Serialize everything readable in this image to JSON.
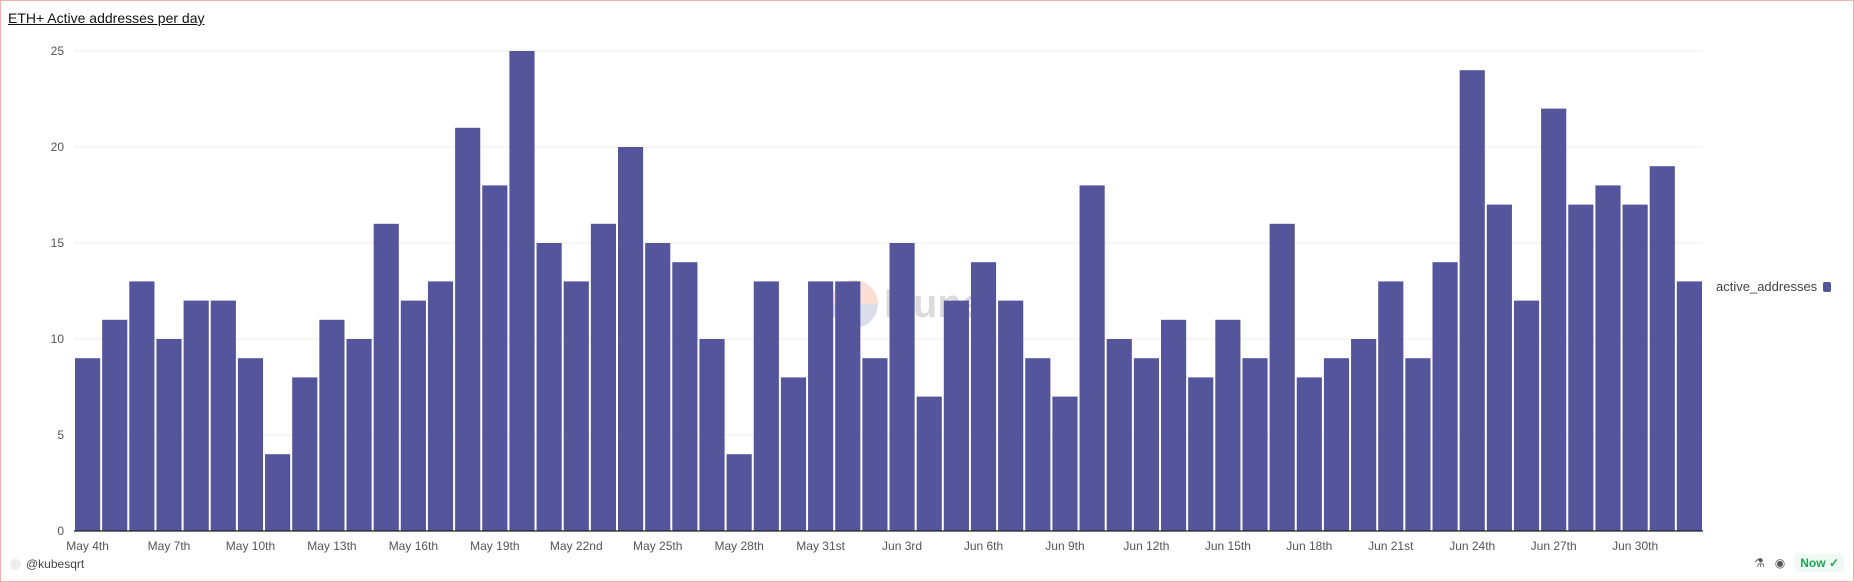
{
  "title": "ETH+ Active addresses per day",
  "footer": {
    "user": "@kubesqrt",
    "status": "Now"
  },
  "watermark": "Dune",
  "chart_data": {
    "type": "bar",
    "title": "ETH+ Active addresses per day",
    "xlabel": "",
    "ylabel": "",
    "ylim": [
      0,
      25
    ],
    "yticks": [
      0,
      5,
      10,
      15,
      20,
      25
    ],
    "grid": true,
    "legend": {
      "entries": [
        "active_addresses"
      ],
      "placement": "right"
    },
    "color": "#55559b",
    "xtick_labels": [
      "May 4th",
      "May 7th",
      "May 10th",
      "May 13th",
      "May 16th",
      "May 19th",
      "May 22nd",
      "May 25th",
      "May 28th",
      "May 31st",
      "Jun 3rd",
      "Jun 6th",
      "Jun 9th",
      "Jun 12th",
      "Jun 15th",
      "Jun 18th",
      "Jun 21st",
      "Jun 24th",
      "Jun 27th",
      "Jun 30th"
    ],
    "series": [
      {
        "name": "active_addresses",
        "values": [
          9,
          11,
          13,
          10,
          12,
          12,
          9,
          4,
          8,
          11,
          10,
          16,
          12,
          13,
          21,
          18,
          25,
          15,
          13,
          16,
          20,
          15,
          14,
          10,
          4,
          13,
          8,
          13,
          13,
          9,
          15,
          7,
          12,
          14,
          12,
          9,
          7,
          18,
          10,
          9,
          11,
          8,
          11,
          9,
          16,
          8,
          9,
          10,
          13,
          9,
          14,
          24,
          17,
          12,
          22,
          17,
          18,
          17,
          19,
          13
        ]
      }
    ]
  }
}
